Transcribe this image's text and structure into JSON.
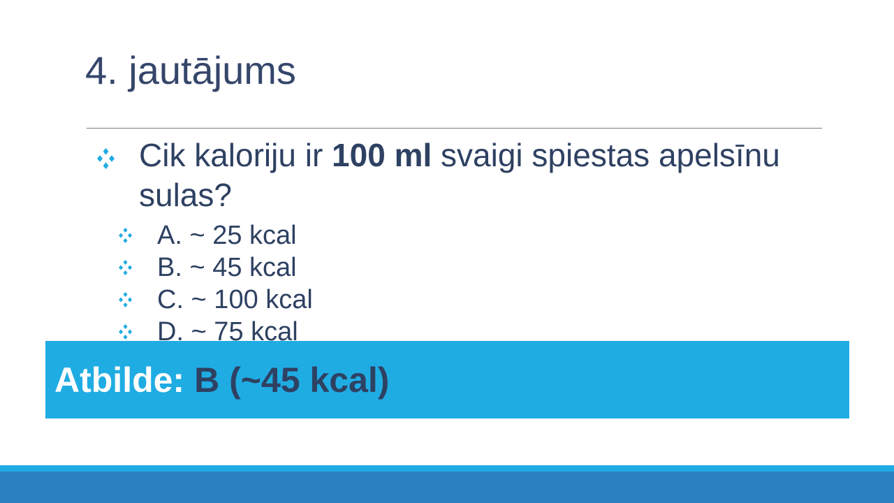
{
  "slide": {
    "title": "4. jautājums",
    "question": {
      "prefix": "Cik kaloriju ir ",
      "bold": "100 ml",
      "suffix": " svaigi spiestas apelsīnu\nsulas?"
    },
    "options": [
      {
        "label": "A. ~ 25 kcal"
      },
      {
        "label": "B. ~ 45 kcal"
      },
      {
        "label": "C. ~ 100 kcal"
      },
      {
        "label": "D. ~ 75 kcal"
      }
    ],
    "answer": {
      "label": "Atbilde:",
      "value": "B (~45 kcal)"
    },
    "icons": {
      "bullet": "diamond-cluster-icon"
    },
    "colors": {
      "accent_cyan": "#1FACE3",
      "footer_blue": "#2A80C0",
      "text_navy": "#2E4162",
      "title_navy": "#35466B",
      "divider_gray": "#7C7C7C"
    }
  }
}
